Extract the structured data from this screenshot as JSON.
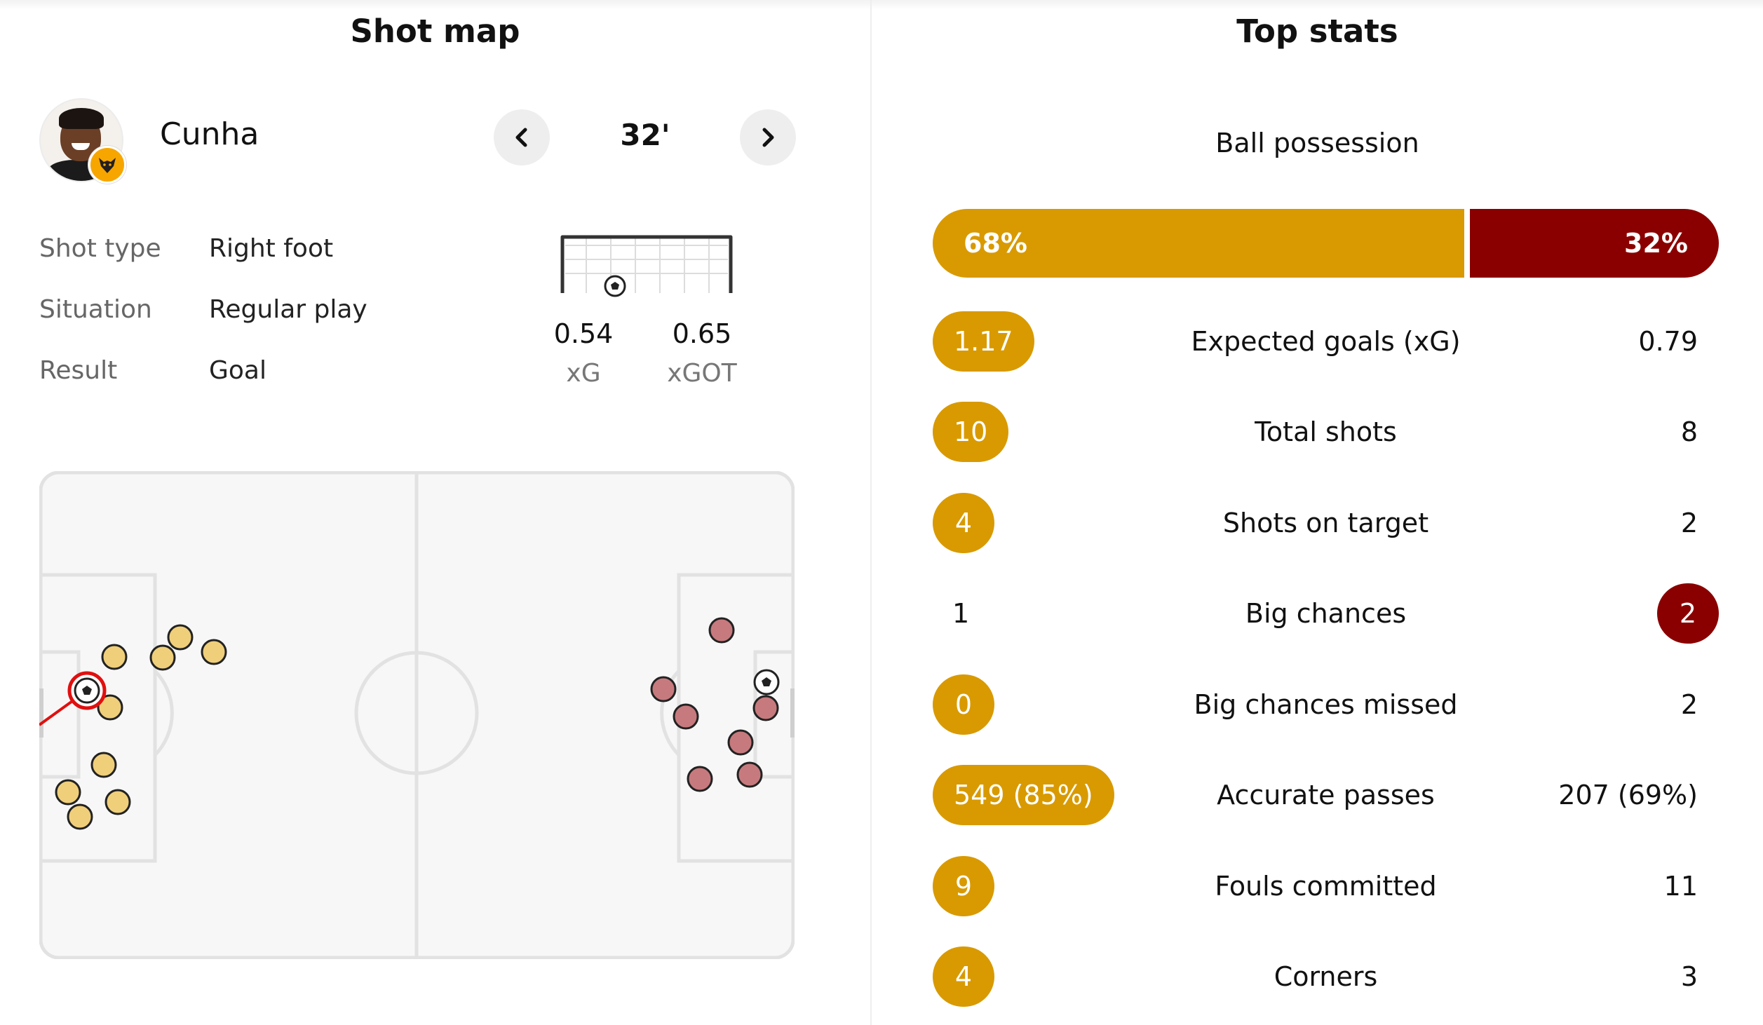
{
  "shot_map": {
    "title": "Shot map",
    "player": {
      "name": "Cunha"
    },
    "minute": "32'",
    "shot_type_label": "Shot type",
    "shot_type_value": "Right foot",
    "situation_label": "Situation",
    "situation_value": "Regular play",
    "result_label": "Result",
    "result_value": "Goal",
    "xg_value": "0.54",
    "xg_label": "xG",
    "xgot_value": "0.65",
    "xgot_label": "xGOT"
  },
  "top_stats": {
    "title": "Top stats",
    "possession": {
      "label": "Ball possession",
      "home": "68%",
      "away": "32%",
      "home_fraction": 0.68
    },
    "rows": [
      {
        "label": "Expected goals (xG)",
        "home": "1.17",
        "away": "0.79",
        "highlight": "home"
      },
      {
        "label": "Total shots",
        "home": "10",
        "away": "8",
        "highlight": "home"
      },
      {
        "label": "Shots on target",
        "home": "4",
        "away": "2",
        "highlight": "home"
      },
      {
        "label": "Big chances",
        "home": "1",
        "away": "2",
        "highlight": "away"
      },
      {
        "label": "Big chances missed",
        "home": "0",
        "away": "2",
        "highlight": "home"
      },
      {
        "label": "Accurate passes",
        "home": "549 (85%)",
        "away": "207 (69%)",
        "highlight": "home"
      },
      {
        "label": "Fouls committed",
        "home": "9",
        "away": "11",
        "highlight": "home"
      },
      {
        "label": "Corners",
        "home": "4",
        "away": "3",
        "highlight": "home"
      }
    ]
  },
  "colors": {
    "home": "#d89a00",
    "away": "#8a0000",
    "home_shot": "#f0cf7a",
    "away_shot": "#c77a7e",
    "selected_ring": "#e01010"
  },
  "icons": {
    "prev": "chevron-left-icon",
    "next": "chevron-right-icon",
    "team": "wolves-badge-icon",
    "ball": "soccer-ball-icon"
  }
}
